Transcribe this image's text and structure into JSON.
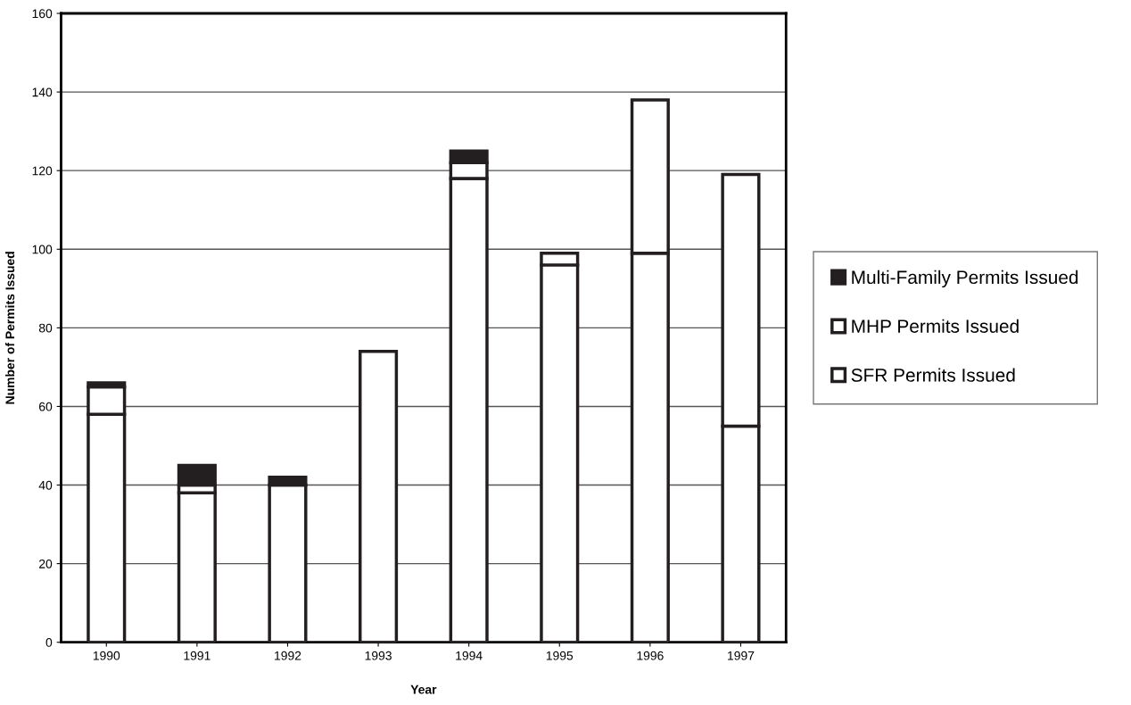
{
  "chart_data": {
    "type": "bar",
    "stacked": true,
    "xlabel": "Year",
    "ylabel": "Number of Permits Issued",
    "categories": [
      "1990",
      "1991",
      "1992",
      "1993",
      "1994",
      "1995",
      "1996",
      "1997"
    ],
    "series": [
      {
        "name": "SFR Permits Issued",
        "color": "#ffffff",
        "values": [
          58,
          38,
          40,
          74,
          118,
          96,
          99,
          55
        ]
      },
      {
        "name": "MHP Permits Issued",
        "color": "#ffffff",
        "values": [
          7,
          2,
          0,
          0,
          4,
          3,
          39,
          64
        ]
      },
      {
        "name": "Multi-Family Permits Issued",
        "color": "#231f20",
        "values": [
          1,
          5,
          2,
          0,
          3,
          0,
          0,
          0
        ]
      }
    ],
    "ylim": [
      0,
      160
    ],
    "yticks": [
      0,
      20,
      40,
      60,
      80,
      100,
      120,
      140,
      160
    ],
    "grid": "y",
    "legend": "right"
  }
}
